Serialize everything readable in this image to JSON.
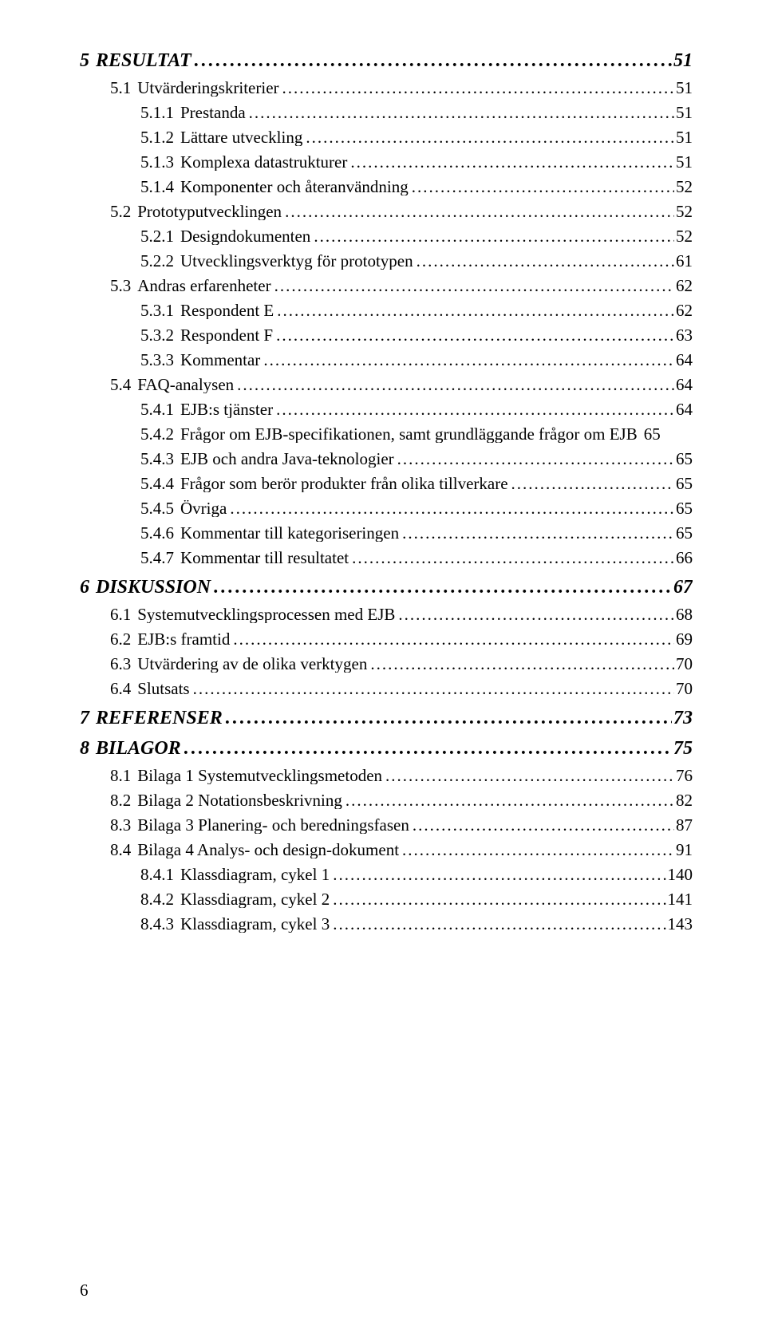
{
  "entries": [
    {
      "level": 1,
      "num": "5",
      "title": "RESULTAT",
      "page": "51"
    },
    {
      "level": 2,
      "num": "5.1",
      "title": "Utvärderingskriterier",
      "page": "51"
    },
    {
      "level": 3,
      "num": "5.1.1",
      "title": "Prestanda",
      "page": "51"
    },
    {
      "level": 3,
      "num": "5.1.2",
      "title": "Lättare utveckling",
      "page": "51"
    },
    {
      "level": 3,
      "num": "5.1.3",
      "title": "Komplexa datastrukturer",
      "page": "51"
    },
    {
      "level": 3,
      "num": "5.1.4",
      "title": "Komponenter och återanvändning",
      "page": "52"
    },
    {
      "level": 2,
      "num": "5.2",
      "title": "Prototyputvecklingen",
      "page": "52"
    },
    {
      "level": 3,
      "num": "5.2.1",
      "title": "Designdokumenten",
      "page": "52"
    },
    {
      "level": 3,
      "num": "5.2.2",
      "title": "Utvecklingsverktyg för prototypen",
      "page": "61"
    },
    {
      "level": 2,
      "num": "5.3",
      "title": "Andras erfarenheter",
      "page": "62"
    },
    {
      "level": 3,
      "num": "5.3.1",
      "title": "Respondent E",
      "page": "62"
    },
    {
      "level": 3,
      "num": "5.3.2",
      "title": "Respondent F",
      "page": "63"
    },
    {
      "level": 3,
      "num": "5.3.3",
      "title": "Kommentar",
      "page": "64"
    },
    {
      "level": 2,
      "num": "5.4",
      "title": "FAQ-analysen",
      "page": "64"
    },
    {
      "level": 3,
      "num": "5.4.1",
      "title": "EJB:s tjänster",
      "page": "64"
    },
    {
      "level": 3,
      "num": "5.4.2",
      "title": "Frågor om EJB-specifikationen, samt grundläggande frågor om EJB",
      "page": "65",
      "noLeader": true
    },
    {
      "level": 3,
      "num": "5.4.3",
      "title": "EJB och andra Java-teknologier",
      "page": "65"
    },
    {
      "level": 3,
      "num": "5.4.4",
      "title": "Frågor som berör produkter från olika tillverkare",
      "page": "65"
    },
    {
      "level": 3,
      "num": "5.4.5",
      "title": "Övriga",
      "page": "65"
    },
    {
      "level": 3,
      "num": "5.4.6",
      "title": "Kommentar till kategoriseringen",
      "page": "65"
    },
    {
      "level": 3,
      "num": "5.4.7",
      "title": "Kommentar till resultatet",
      "page": "66"
    },
    {
      "level": 1,
      "num": "6",
      "title": "DISKUSSION",
      "page": "67"
    },
    {
      "level": 2,
      "num": "6.1",
      "title": "Systemutvecklingsprocessen med EJB",
      "page": "68"
    },
    {
      "level": 2,
      "num": "6.2",
      "title": "EJB:s framtid",
      "page": "69"
    },
    {
      "level": 2,
      "num": "6.3",
      "title": "Utvärdering av de olika verktygen",
      "page": "70"
    },
    {
      "level": 2,
      "num": "6.4",
      "title": "Slutsats",
      "page": "70"
    },
    {
      "level": 1,
      "num": "7",
      "title": "REFERENSER",
      "page": "73"
    },
    {
      "level": 1,
      "num": "8",
      "title": "BILAGOR",
      "page": "75"
    },
    {
      "level": 2,
      "num": "8.1",
      "title": "Bilaga 1 Systemutvecklingsmetoden",
      "page": "76"
    },
    {
      "level": 2,
      "num": "8.2",
      "title": "Bilaga 2 Notationsbeskrivning",
      "page": "82"
    },
    {
      "level": 2,
      "num": "8.3",
      "title": "Bilaga 3 Planering- och beredningsfasen",
      "page": "87"
    },
    {
      "level": 2,
      "num": "8.4",
      "title": "Bilaga 4 Analys- och design-dokument",
      "page": "91"
    },
    {
      "level": 3,
      "num": "8.4.1",
      "title": "Klassdiagram, cykel 1",
      "page": "140"
    },
    {
      "level": 3,
      "num": "8.4.2",
      "title": "Klassdiagram, cykel 2",
      "page": "141"
    },
    {
      "level": 3,
      "num": "8.4.3",
      "title": "Klassdiagram, cykel 3",
      "page": "143"
    }
  ],
  "pageNumber": "6",
  "style": {
    "pageWidth": 960,
    "pageHeight": 1672,
    "background": "#ffffff",
    "textColor": "#000000",
    "fontFamily": "Times New Roman",
    "level1": {
      "fontSize": 24,
      "fontWeight": "bold",
      "fontStyle": "italic",
      "indent": 0
    },
    "level2": {
      "fontSize": 21,
      "fontWeight": "normal",
      "fontStyle": "normal",
      "indent": 38
    },
    "level3": {
      "fontSize": 21,
      "fontWeight": "normal",
      "fontStyle": "normal",
      "indent": 76
    },
    "leaderChar": ".",
    "leaderSpacing": 2
  }
}
